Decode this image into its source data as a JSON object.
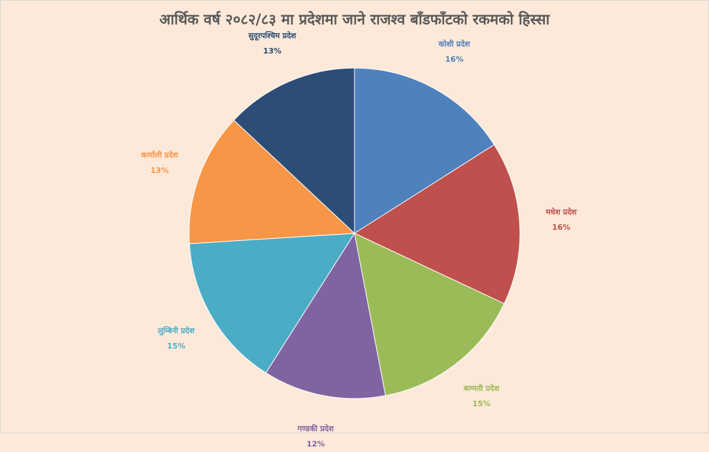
{
  "chart_data": {
    "type": "pie",
    "title": "आर्थिक वर्ष २०८२/८३ मा प्रदेशमा जाने राजश्व बाँडफाँटको रकमको हिस्सा",
    "slices": [
      {
        "name": "कोशी प्रदेश",
        "value": 16,
        "label": "16%",
        "color": "#4f81bd"
      },
      {
        "name": "मधेश प्रदेश",
        "value": 16,
        "label": "16%",
        "color": "#c0504d"
      },
      {
        "name": "बाग्मती प्रदेश",
        "value": 15,
        "label": "15%",
        "color": "#9bbb59"
      },
      {
        "name": "गण्डकी प्रदेश",
        "value": 12,
        "label": "12%",
        "color": "#8064a2"
      },
      {
        "name": "लुम्बिनी प्रदेश",
        "value": 15,
        "label": "15%",
        "color": "#4bacc6"
      },
      {
        "name": "कर्णाली प्रदेश",
        "value": 13,
        "label": "13%",
        "color": "#f79646"
      },
      {
        "name": "सुदूरपश्चिम प्रदेश",
        "value": 13,
        "label": "13%",
        "color": "#2c4d75"
      }
    ]
  }
}
